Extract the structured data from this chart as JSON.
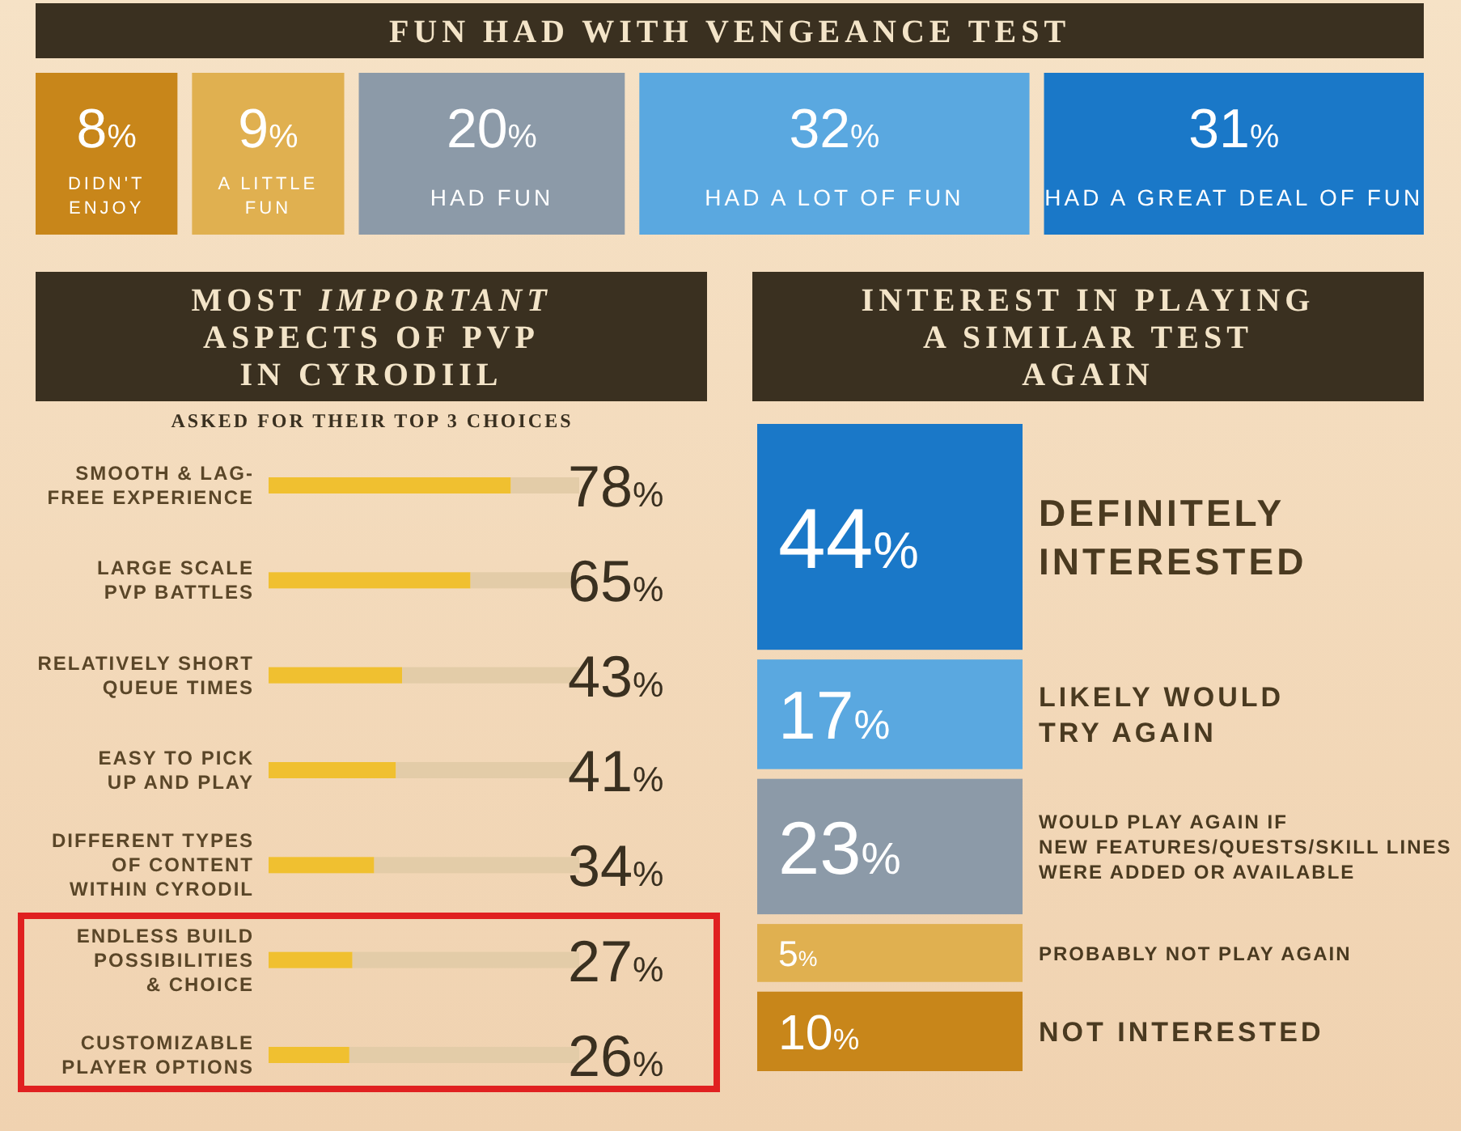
{
  "chart_data": [
    {
      "type": "other",
      "title": "FUN HAD WITH VENGEANCE TEST",
      "categories": [
        "DIDN'T\nENJOY",
        "A LITTLE\nFUN",
        "HAD FUN",
        "HAD A LOT OF FUN",
        "HAD A GREAT DEAL OF FUN"
      ],
      "values": [
        8,
        9,
        20,
        32,
        31
      ],
      "value_labels": [
        "8%",
        "9%",
        "20%",
        "32%",
        "31%"
      ],
      "colors": [
        "#c8861a",
        "#e0b050",
        "#8c9aa8",
        "#5aa8e0",
        "#1a78c8"
      ]
    },
    {
      "type": "bar",
      "orientation": "horizontal",
      "stacked": true,
      "title": "MOST IMPORTANT\nASPECTS OF PVP\nIN CYRODIIL",
      "subtitle": "ASKED FOR THEIR TOP 3 CHOICES",
      "categories": [
        "SMOOTH & LAG-\nFREE EXPERIENCE",
        "LARGE SCALE\nPVP BATTLES",
        "RELATIVELY SHORT\nQUEUE TIMES",
        "EASY TO PICK\nUP AND PLAY",
        "DIFFERENT TYPES\nOF CONTENT\nWITHIN CYRODIL",
        "ENDLESS BUILD\nPOSSIBILITIES\n& CHOICE",
        "CUSTOMIZABLE\nPLAYER OPTIONS"
      ],
      "xlim": [
        0,
        100
      ],
      "series": [
        {
          "color": "#f0c030",
          "values": [
            78,
            65,
            43,
            41,
            34,
            27,
            26
          ],
          "value_labels": [
            "78%",
            "65%",
            "43%",
            "41%",
            "34%",
            "27%",
            "26%"
          ]
        },
        {
          "color": "#e3cca8",
          "values": [
            22,
            35,
            57,
            59,
            66,
            73,
            74
          ]
        }
      ]
    },
    {
      "type": "other",
      "title": "INTEREST IN PLAYING\nA SIMILAR TEST\nAGAIN",
      "categories": [
        "DEFINITELY\nINTERESTED",
        "LIKELY WOULD\nTRY AGAIN",
        "WOULD PLAY AGAIN IF\nNEW FEATURES/QUESTS/SKILL LINES\nWERE ADDED OR AVAILABLE",
        "PROBABLY NOT PLAY AGAIN",
        "NOT INTERESTED"
      ],
      "values": [
        44,
        17,
        23,
        5,
        10
      ],
      "value_labels": [
        "44%",
        "17%",
        "23%",
        "5%",
        "10%"
      ],
      "colors": [
        "#1a78c8",
        "#5aa8e0",
        "#8c9aa8",
        "#e0b050",
        "#c8861a"
      ]
    }
  ]
}
